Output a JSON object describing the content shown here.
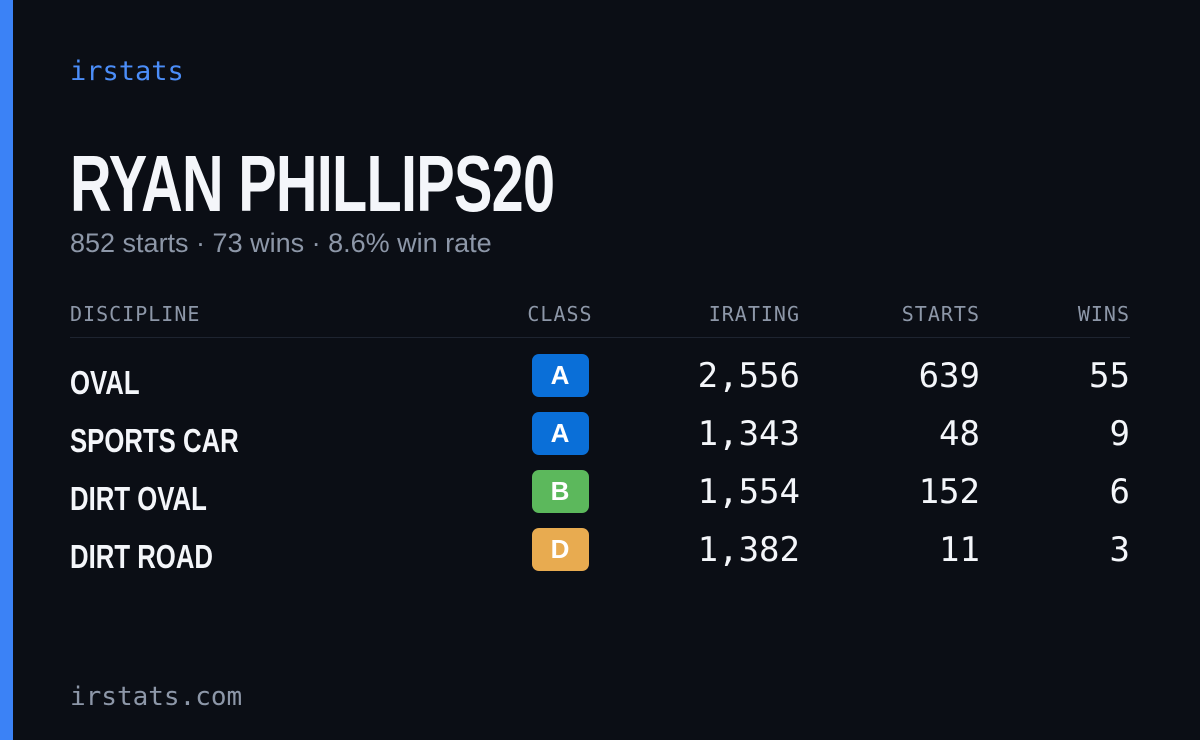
{
  "brand": "irstats",
  "driver": {
    "name": "RYAN PHILLIPS20",
    "summary": "852 starts · 73 wins · 8.6% win rate"
  },
  "table": {
    "headers": [
      "DISCIPLINE",
      "CLASS",
      "IRATING",
      "STARTS",
      "WINS"
    ],
    "rows": [
      {
        "discipline": "OVAL",
        "class": "A",
        "class_color": "#0a6fd8",
        "irating": "2,556",
        "starts": "639",
        "wins": "55"
      },
      {
        "discipline": "SPORTS CAR",
        "class": "A",
        "class_color": "#0a6fd8",
        "irating": "1,343",
        "starts": "48",
        "wins": "9"
      },
      {
        "discipline": "DIRT OVAL",
        "class": "B",
        "class_color": "#5cb85c",
        "irating": "1,554",
        "starts": "152",
        "wins": "6"
      },
      {
        "discipline": "DIRT ROAD",
        "class": "D",
        "class_color": "#e8ab50",
        "irating": "1,382",
        "starts": "11",
        "wins": "3"
      }
    ]
  },
  "footer": "irstats.com"
}
